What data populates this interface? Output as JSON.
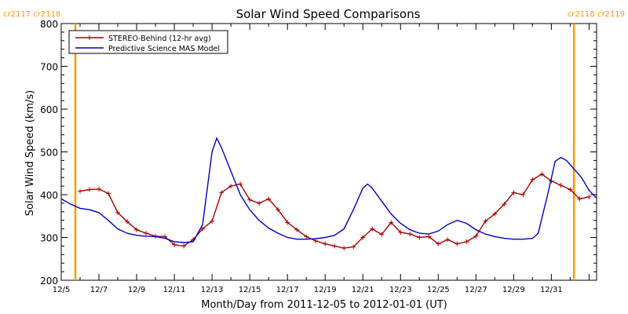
{
  "chart_data": {
    "type": "line",
    "title": "Solar Wind Speed Comparisons",
    "xlabel": "Month/Day from 2011-12-05 to 2012-01-01 (UT)",
    "ylabel": "Solar Wind Speed (km/s)",
    "x_range_days": [
      0,
      27.5
    ],
    "ylim": [
      200,
      800
    ],
    "y_ticks": [
      200,
      300,
      400,
      500,
      600,
      700,
      800
    ],
    "x_ticks": [
      {
        "day": 0,
        "label": "12/5"
      },
      {
        "day": 2,
        "label": "12/7"
      },
      {
        "day": 4,
        "label": "12/9"
      },
      {
        "day": 6,
        "label": "12/11"
      },
      {
        "day": 8,
        "label": "12/13"
      },
      {
        "day": 10,
        "label": "12/15"
      },
      {
        "day": 12,
        "label": "12/17"
      },
      {
        "day": 14,
        "label": "12/19"
      },
      {
        "day": 16,
        "label": "12/21"
      },
      {
        "day": 18,
        "label": "12/23"
      },
      {
        "day": 20,
        "label": "12/25"
      },
      {
        "day": 22,
        "label": "12/27"
      },
      {
        "day": 24,
        "label": "12/29"
      },
      {
        "day": 26,
        "label": "12/31"
      }
    ],
    "markers": [
      {
        "day": 0.75,
        "label": "cr2117 cr2118",
        "side": "left",
        "color": "#FF9900"
      },
      {
        "day": 27.2,
        "label": "cr2118 cr2119",
        "side": "right",
        "color": "#FF9900"
      }
    ],
    "legend_position": "top-left",
    "series": [
      {
        "name": "STEREO-Behind (12-hr avg)",
        "color": "#AA0000",
        "marker": "plus",
        "points": [
          [
            1.0,
            408
          ],
          [
            1.5,
            412
          ],
          [
            2.0,
            413
          ],
          [
            2.5,
            403
          ],
          [
            3.0,
            358
          ],
          [
            3.5,
            337
          ],
          [
            4.0,
            318
          ],
          [
            4.5,
            310
          ],
          [
            5.0,
            303
          ],
          [
            5.5,
            302
          ],
          [
            6.0,
            283
          ],
          [
            6.5,
            280
          ],
          [
            7.0,
            295
          ],
          [
            7.5,
            320
          ],
          [
            8.0,
            338
          ],
          [
            8.5,
            405
          ],
          [
            9.0,
            420
          ],
          [
            9.5,
            425
          ],
          [
            10.0,
            388
          ],
          [
            10.5,
            380
          ],
          [
            11.0,
            390
          ],
          [
            11.5,
            365
          ],
          [
            12.0,
            335
          ],
          [
            12.5,
            318
          ],
          [
            13.0,
            302
          ],
          [
            13.5,
            292
          ],
          [
            14.0,
            285
          ],
          [
            14.5,
            280
          ],
          [
            15.0,
            275
          ],
          [
            15.5,
            278
          ],
          [
            16.0,
            300
          ],
          [
            16.5,
            320
          ],
          [
            17.0,
            307
          ],
          [
            17.5,
            335
          ],
          [
            18.0,
            312
          ],
          [
            18.5,
            308
          ],
          [
            19.0,
            300
          ],
          [
            19.5,
            302
          ],
          [
            20.0,
            285
          ],
          [
            20.5,
            295
          ],
          [
            21.0,
            285
          ],
          [
            21.5,
            290
          ],
          [
            22.0,
            303
          ],
          [
            22.5,
            338
          ],
          [
            23.0,
            355
          ],
          [
            23.5,
            378
          ],
          [
            24.0,
            405
          ],
          [
            24.5,
            400
          ],
          [
            25.0,
            435
          ],
          [
            25.5,
            448
          ],
          [
            26.0,
            432
          ],
          [
            26.5,
            422
          ],
          [
            27.0,
            412
          ],
          [
            27.5,
            390
          ],
          [
            28.0,
            395
          ],
          [
            28.5,
            398
          ]
        ]
      },
      {
        "name": "Predictive Science MAS Model",
        "color": "#0000CC",
        "marker": "none",
        "points": [
          [
            0.0,
            390
          ],
          [
            0.5,
            378
          ],
          [
            1.0,
            368
          ],
          [
            1.5,
            365
          ],
          [
            2.0,
            358
          ],
          [
            2.5,
            340
          ],
          [
            3.0,
            320
          ],
          [
            3.5,
            310
          ],
          [
            4.0,
            305
          ],
          [
            4.5,
            303
          ],
          [
            5.0,
            302
          ],
          [
            5.5,
            298
          ],
          [
            6.0,
            290
          ],
          [
            6.5,
            288
          ],
          [
            7.0,
            290
          ],
          [
            7.5,
            330
          ],
          [
            8.0,
            500
          ],
          [
            8.25,
            532
          ],
          [
            8.5,
            510
          ],
          [
            9.0,
            455
          ],
          [
            9.5,
            400
          ],
          [
            10.0,
            365
          ],
          [
            10.5,
            340
          ],
          [
            11.0,
            322
          ],
          [
            11.5,
            310
          ],
          [
            12.0,
            300
          ],
          [
            12.5,
            296
          ],
          [
            13.0,
            296
          ],
          [
            13.5,
            297
          ],
          [
            14.0,
            300
          ],
          [
            14.5,
            305
          ],
          [
            15.0,
            320
          ],
          [
            15.5,
            365
          ],
          [
            16.0,
            415
          ],
          [
            16.25,
            425
          ],
          [
            16.5,
            415
          ],
          [
            17.0,
            385
          ],
          [
            17.5,
            355
          ],
          [
            18.0,
            333
          ],
          [
            18.5,
            318
          ],
          [
            19.0,
            310
          ],
          [
            19.5,
            308
          ],
          [
            20.0,
            315
          ],
          [
            20.5,
            330
          ],
          [
            21.0,
            340
          ],
          [
            21.5,
            333
          ],
          [
            22.0,
            318
          ],
          [
            22.5,
            308
          ],
          [
            23.0,
            302
          ],
          [
            23.5,
            298
          ],
          [
            24.0,
            296
          ],
          [
            24.5,
            296
          ],
          [
            25.0,
            298
          ],
          [
            25.3,
            310
          ],
          [
            25.8,
            400
          ],
          [
            26.2,
            478
          ],
          [
            26.5,
            487
          ],
          [
            26.8,
            480
          ],
          [
            27.2,
            460
          ],
          [
            27.6,
            440
          ],
          [
            28.0,
            410
          ],
          [
            28.4,
            392
          ]
        ]
      }
    ]
  }
}
